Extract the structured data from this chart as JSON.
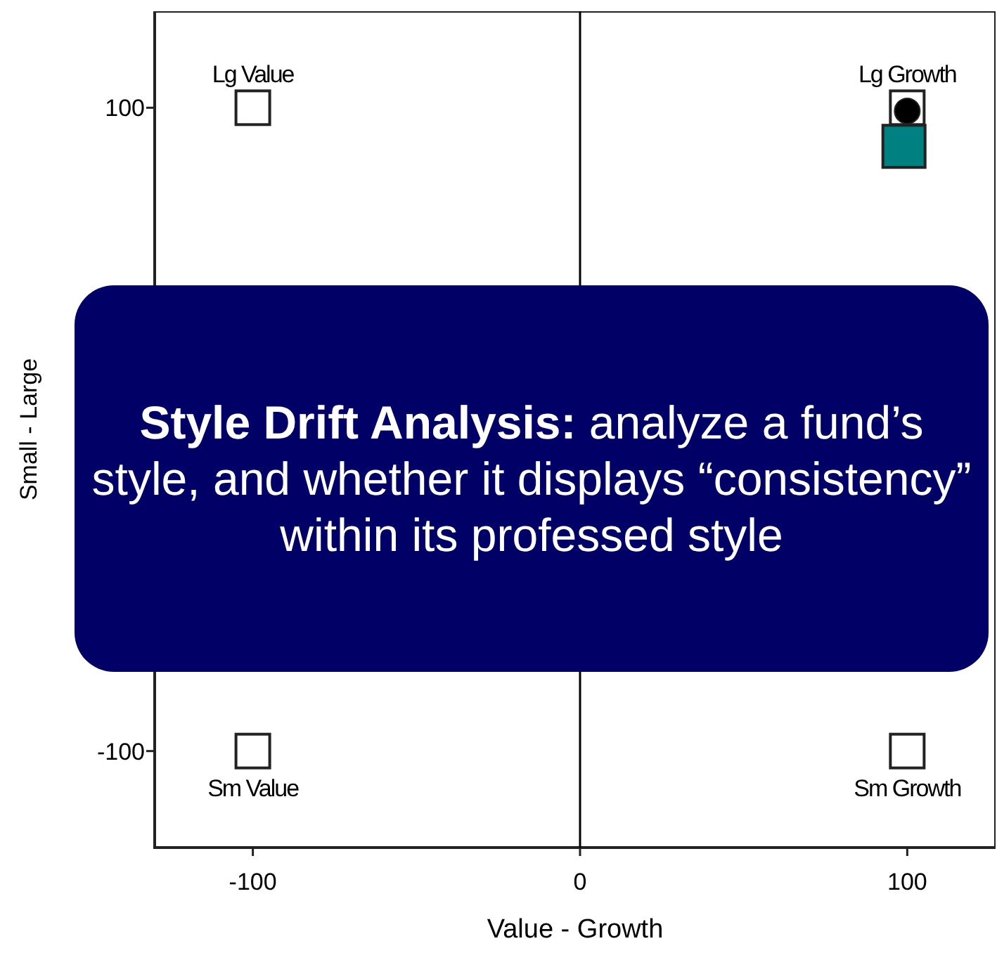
{
  "chart_data": {
    "type": "scatter",
    "xlabel": "Value - Growth",
    "ylabel": "Small - Large",
    "xlim": [
      -130,
      127
    ],
    "ylim": [
      -130,
      130
    ],
    "xticks": [
      -100,
      0,
      100
    ],
    "yticks": [
      -100,
      100
    ],
    "grid": false,
    "ref_lines": [
      {
        "axis": "x",
        "value": 0,
        "color": "#000000"
      }
    ],
    "series": [
      {
        "x": [
          -100,
          100,
          -100,
          100
        ],
        "values": [
          100,
          100,
          -100,
          -100
        ],
        "color": "#ffffff",
        "marker": "square",
        "value_labels": [
          "Lg Value",
          "Lg Growth",
          "Sm Value",
          "Sm Growth"
        ]
      },
      {
        "x": [
          100
        ],
        "values": [
          99
        ],
        "color": "#000000",
        "marker": "circle"
      },
      {
        "x": [
          99
        ],
        "values": [
          88
        ],
        "color": "#008080",
        "marker": "square"
      }
    ],
    "annotations": [
      "Style Drift Analysis:",
      "analyze a fund’s style, and whether it displays “consistency” within its professed style"
    ]
  }
}
